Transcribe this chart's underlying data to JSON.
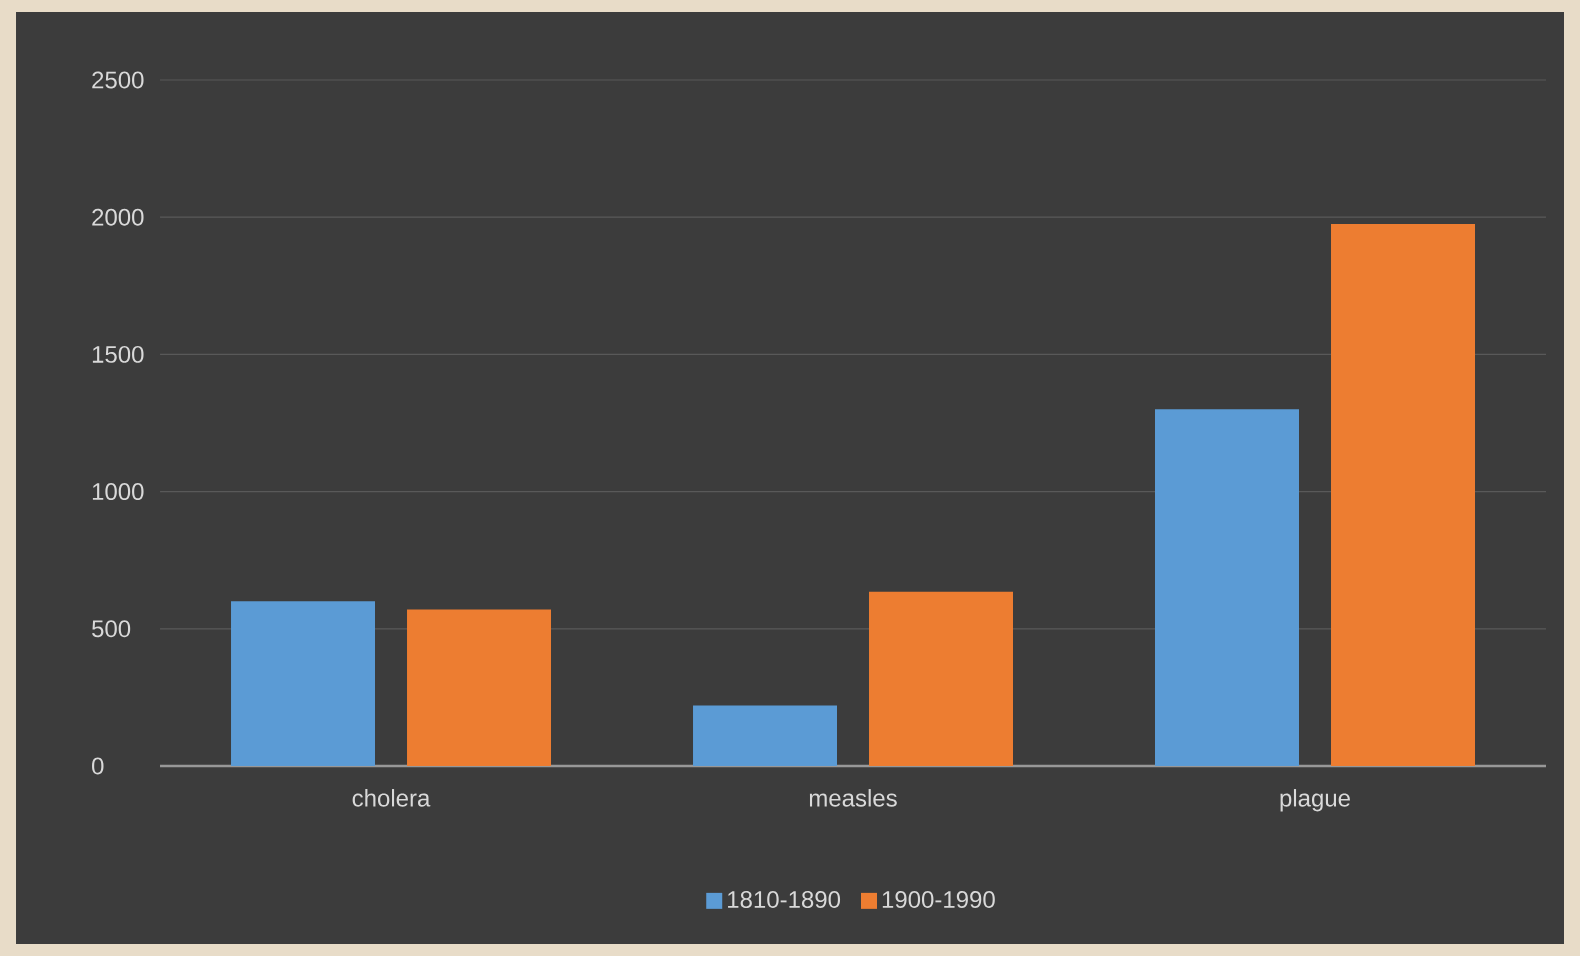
{
  "chart_data": {
    "type": "bar",
    "categories": [
      "cholera",
      "measles",
      "plague"
    ],
    "series": [
      {
        "name": "1810-1890",
        "color": "#5b9bd5",
        "values": [
          600,
          220,
          1300
        ]
      },
      {
        "name": "1900-1990",
        "color": "#ed7d31",
        "values": [
          570,
          635,
          1975
        ]
      }
    ],
    "ylim": [
      0,
      2500
    ],
    "yticks": [
      0,
      500,
      1000,
      1500,
      2000,
      2500
    ],
    "grid": "y",
    "legend": "bottom"
  }
}
